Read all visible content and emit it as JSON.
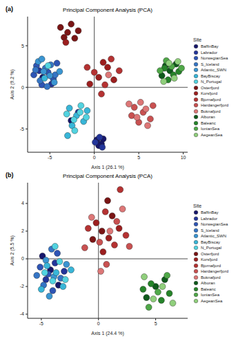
{
  "chart_data": [
    {
      "type": "scatter",
      "panel": "(a)",
      "title": "Principal Component Analysis (PCA)",
      "x_label": "Axis 1 (26.1 %)",
      "y_label": "Axis 2 (9.2 %)",
      "legend_title": "Site",
      "legend": "right",
      "xlim": [
        -7.5,
        10.5
      ],
      "ylim": [
        -7.8,
        8.5
      ],
      "xticks": [
        -5,
        0,
        5,
        10
      ],
      "yticks": [
        -5,
        0,
        5
      ],
      "marker": "circle",
      "series": [
        {
          "name": "BaffinBay",
          "color": "#16166b",
          "values": [
            [
              0.3,
              -6.3
            ],
            [
              0.8,
              -6.8
            ],
            [
              0.5,
              -7.0
            ],
            [
              -5.8,
              1.2
            ],
            [
              -2.6,
              -4.0
            ],
            [
              1.0,
              -6.2
            ]
          ]
        },
        {
          "name": "Labrador",
          "color": "#23359a",
          "values": [
            [
              0.1,
              -6.6
            ],
            [
              0.6,
              -6.0
            ],
            [
              0.9,
              -7.2
            ],
            [
              -6.2,
              2.0
            ],
            [
              -4.8,
              0.4
            ],
            [
              -1.8,
              -3.0
            ]
          ]
        },
        {
          "name": "NorwegianSea",
          "color": "#2e55b5",
          "values": [
            [
              -5.2,
              1.8
            ],
            [
              -6.5,
              2.6
            ],
            [
              -4.6,
              1.0
            ],
            [
              -5.9,
              0.3
            ],
            [
              -4.2,
              2.9
            ],
            [
              -6.8,
              1.5
            ]
          ]
        },
        {
          "name": "S_Iceland",
          "color": "#3575c5",
          "values": [
            [
              -5.5,
              2.3
            ],
            [
              -6.1,
              0.8
            ],
            [
              -4.9,
              2.7
            ],
            [
              -5.3,
              0.1
            ],
            [
              -6.6,
              2.1
            ],
            [
              -4.4,
              1.5
            ]
          ]
        },
        {
          "name": "Atlantic_SWN",
          "color": "#3a95d2",
          "values": [
            [
              -5.0,
              1.4
            ],
            [
              -6.3,
              3.1
            ],
            [
              -5.7,
              1.9
            ],
            [
              -4.5,
              0.6
            ],
            [
              -5.9,
              3.4
            ],
            [
              -3.9,
              1.9
            ]
          ]
        },
        {
          "name": "BayBiscay",
          "color": "#38b6d8",
          "values": [
            [
              -2.0,
              -3.4
            ],
            [
              -2.8,
              -2.5
            ],
            [
              -1.2,
              -4.1
            ],
            [
              -5.6,
              1.1
            ],
            [
              -2.5,
              -4.6
            ],
            [
              -0.8,
              -2.8
            ],
            [
              -3.0,
              -5.8
            ]
          ]
        },
        {
          "name": "N_Portugal",
          "color": "#52d3e0",
          "values": [
            [
              -1.6,
              -3.0
            ],
            [
              -2.3,
              -3.9
            ],
            [
              -0.9,
              -3.6
            ],
            [
              -3.1,
              -3.2
            ],
            [
              -1.5,
              -2.2
            ],
            [
              -2.2,
              -5.2
            ],
            [
              -5.2,
              2.6
            ]
          ]
        },
        {
          "name": "Osterfjord",
          "color": "#7a1515",
          "values": [
            [
              -3.0,
              6.6
            ],
            [
              -3.8,
              7.2
            ],
            [
              -2.2,
              5.9
            ],
            [
              -3.4,
              6.0
            ],
            [
              -2.6,
              7.6
            ],
            [
              -1.8,
              6.8
            ]
          ]
        },
        {
          "name": "Korsfjord",
          "color": "#9c1f1f",
          "values": [
            [
              0.5,
              1.2
            ],
            [
              1.5,
              2.4
            ],
            [
              -0.5,
              0.4
            ],
            [
              2.2,
              0.9
            ],
            [
              1.0,
              3.0
            ],
            [
              -3.2,
              5.4
            ]
          ]
        },
        {
          "name": "Bjornafjord",
          "color": "#b53232",
          "values": [
            [
              1.2,
              0.3
            ],
            [
              0.0,
              1.8
            ],
            [
              2.8,
              2.0
            ],
            [
              0.8,
              -0.8
            ],
            [
              1.9,
              3.4
            ],
            [
              -0.8,
              2.4
            ]
          ]
        },
        {
          "name": "Hardangerfjord",
          "color": "#c95151",
          "values": [
            [
              5.5,
              -3.0
            ],
            [
              4.5,
              -2.4
            ],
            [
              6.3,
              -3.8
            ],
            [
              5.0,
              -4.2
            ],
            [
              6.6,
              -2.2
            ],
            [
              4.2,
              -3.4
            ]
          ]
        },
        {
          "name": "Boknafjord",
          "color": "#dd7777",
          "values": [
            [
              5.8,
              -2.6
            ],
            [
              4.8,
              -3.6
            ],
            [
              6.0,
              -4.6
            ],
            [
              5.2,
              -1.8
            ],
            [
              3.9,
              -2.0
            ],
            [
              1.6,
              1.5
            ]
          ]
        },
        {
          "name": "Alboran",
          "color": "#0f5a1c",
          "values": [
            [
              8.5,
              2.0
            ],
            [
              7.6,
              1.4
            ],
            [
              9.2,
              2.8
            ],
            [
              8.0,
              2.6
            ]
          ]
        },
        {
          "name": "Balearic",
          "color": "#26842a",
          "values": [
            [
              8.9,
              1.5
            ],
            [
              7.9,
              2.3
            ],
            [
              9.5,
              1.9
            ],
            [
              8.3,
              0.9
            ]
          ]
        },
        {
          "name": "IonianSea",
          "color": "#4fa848",
          "values": [
            [
              8.7,
              2.5
            ],
            [
              7.4,
              2.0
            ],
            [
              9.8,
              2.3
            ],
            [
              8.1,
              3.2
            ]
          ]
        },
        {
          "name": "AegeanSea",
          "color": "#90cf7c",
          "values": [
            [
              9.0,
              1.1
            ],
            [
              8.4,
              2.9
            ],
            [
              7.8,
              0.7
            ],
            [
              9.4,
              3.1
            ]
          ]
        }
      ]
    },
    {
      "type": "scatter",
      "panel": "(b)",
      "title": "Principal Component Analysis (PCA)",
      "x_label": "Axis 1 (24.4 %)",
      "y_label": "Axis 2 (5.5 %)",
      "legend_title": "Site",
      "legend": "right",
      "xlim": [
        -6.2,
        7.8
      ],
      "ylim": [
        -4.3,
        5.5
      ],
      "xticks": [
        -5,
        0,
        5
      ],
      "yticks": [
        -4,
        -2,
        0,
        2,
        4
      ],
      "marker": "circle",
      "series": [
        {
          "name": "BaffinBay",
          "color": "#16166b",
          "values": [
            [
              -4.2,
              -0.8
            ],
            [
              -3.5,
              -1.9
            ],
            [
              -4.9,
              0.2
            ]
          ]
        },
        {
          "name": "Labrador",
          "color": "#23359a",
          "values": [
            [
              -3.8,
              -0.3
            ],
            [
              -4.6,
              -1.5
            ],
            [
              -3.0,
              -0.9
            ]
          ]
        },
        {
          "name": "NorwegianSea",
          "color": "#2e55b5",
          "values": [
            [
              -4.4,
              -1.1
            ],
            [
              -5.1,
              -0.6
            ],
            [
              -3.6,
              0.4
            ],
            [
              -4.0,
              -2.3
            ]
          ]
        },
        {
          "name": "S_Iceland",
          "color": "#3575c5",
          "values": [
            [
              -4.8,
              -1.9
            ],
            [
              -3.3,
              -1.4
            ],
            [
              -4.1,
              0.7
            ],
            [
              -5.4,
              -1.2
            ]
          ]
        },
        {
          "name": "Atlantic_SWN",
          "color": "#3a95d2",
          "values": [
            [
              -3.9,
              -1.3
            ],
            [
              -4.6,
              -0.1
            ],
            [
              -2.8,
              -0.4
            ],
            [
              -4.3,
              -2.7
            ]
          ]
        },
        {
          "name": "BayBiscay",
          "color": "#38b6d8",
          "values": [
            [
              -4.5,
              -0.5
            ],
            [
              -3.7,
              -1.0
            ],
            [
              -5.0,
              -2.2
            ],
            [
              -3.1,
              -2.0
            ],
            [
              -2.4,
              -0.8
            ]
          ]
        },
        {
          "name": "N_Portugal",
          "color": "#52d3e0",
          "values": [
            [
              -4.0,
              -1.6
            ],
            [
              -3.4,
              -0.2
            ],
            [
              -4.7,
              -1.0
            ],
            [
              -2.9,
              -1.5
            ],
            [
              -3.8,
              0.9
            ]
          ]
        },
        {
          "name": "Osterfjord",
          "color": "#7a1515",
          "values": [
            [
              0.3,
              2.0
            ],
            [
              1.2,
              3.1
            ],
            [
              -0.5,
              1.4
            ],
            [
              0.8,
              4.2
            ]
          ]
        },
        {
          "name": "Korsfjord",
          "color": "#9c1f1f",
          "values": [
            [
              0.9,
              1.5
            ],
            [
              -0.2,
              2.6
            ],
            [
              1.8,
              2.2
            ],
            [
              0.4,
              0.5
            ]
          ]
        },
        {
          "name": "Bjornafjord",
          "color": "#b53232",
          "values": [
            [
              1.4,
              1.0
            ],
            [
              -0.9,
              2.2
            ],
            [
              0.6,
              3.4
            ],
            [
              2.4,
              1.7
            ],
            [
              1.9,
              5.0
            ]
          ]
        },
        {
          "name": "Hardangerfjord",
          "color": "#c95151",
          "values": [
            [
              0.1,
              1.2
            ],
            [
              1.6,
              2.7
            ],
            [
              -1.2,
              0.8
            ],
            [
              2.7,
              0.9
            ],
            [
              0.7,
              -0.4
            ]
          ]
        },
        {
          "name": "Boknafjord",
          "color": "#dd7777",
          "values": [
            [
              1.0,
              2.0
            ],
            [
              -0.6,
              3.0
            ],
            [
              2.1,
              3.6
            ],
            [
              0.2,
              -0.9
            ]
          ]
        },
        {
          "name": "Alboran",
          "color": "#0f5a1c",
          "values": [
            [
              5.0,
              -2.0
            ],
            [
              4.2,
              -2.8
            ],
            [
              5.8,
              -1.5
            ]
          ]
        },
        {
          "name": "Balearic",
          "color": "#26842a",
          "values": [
            [
              4.6,
              -1.8
            ],
            [
              5.5,
              -3.0
            ],
            [
              3.9,
              -2.2
            ],
            [
              6.2,
              -2.5
            ]
          ]
        },
        {
          "name": "IonianSea",
          "color": "#4fa848",
          "values": [
            [
              5.2,
              -2.4
            ],
            [
              4.4,
              -3.5
            ],
            [
              6.0,
              -1.2
            ]
          ]
        },
        {
          "name": "AegeanSea",
          "color": "#90cf7c",
          "values": [
            [
              4.8,
              -2.9
            ],
            [
              5.6,
              -2.0
            ],
            [
              4.0,
              -1.3
            ],
            [
              6.5,
              -3.2
            ]
          ]
        }
      ]
    }
  ]
}
